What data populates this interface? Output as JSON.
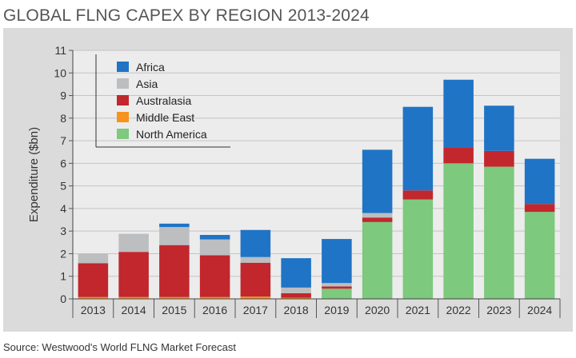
{
  "title": "GLOBAL FLNG CAPEX BY REGION 2013-2024",
  "source": "Source: Westwood's World FLNG Market Forecast",
  "chart_data": {
    "type": "bar",
    "stacked": true,
    "title": "GLOBAL FLNG CAPEX BY REGION 2013-2024",
    "xlabel": "",
    "ylabel": "Expenditure ($bn)",
    "ylim": [
      0,
      11
    ],
    "yticks": [
      0,
      1,
      2,
      3,
      4,
      5,
      6,
      7,
      8,
      9,
      10,
      11
    ],
    "grid": true,
    "legend_position": "top-left",
    "categories": [
      "2013",
      "2014",
      "2015",
      "2016",
      "2017",
      "2018",
      "2019",
      "2020",
      "2021",
      "2022",
      "2023",
      "2024"
    ],
    "series": [
      {
        "name": "North America",
        "color": "#7dc97d",
        "values": [
          0,
          0,
          0,
          0,
          0,
          0,
          0.45,
          3.4,
          4.4,
          6.0,
          5.85,
          3.85
        ]
      },
      {
        "name": "Middle East",
        "color": "#f7941d",
        "values": [
          0.08,
          0.08,
          0.08,
          0.08,
          0.1,
          0.05,
          0,
          0,
          0,
          0,
          0,
          0
        ]
      },
      {
        "name": "Australasia",
        "color": "#c1272d",
        "values": [
          1.5,
          2.0,
          2.3,
          1.85,
          1.5,
          0.2,
          0.1,
          0.2,
          0.4,
          0.7,
          0.7,
          0.35
        ]
      },
      {
        "name": "Asia",
        "color": "#bcbec0",
        "values": [
          0.42,
          0.8,
          0.8,
          0.7,
          0.25,
          0.25,
          0.15,
          0.2,
          0,
          0,
          0,
          0
        ]
      },
      {
        "name": "Africa",
        "color": "#1f74c6",
        "values": [
          0,
          0,
          0.15,
          0.2,
          1.2,
          1.3,
          1.95,
          2.8,
          3.7,
          3.0,
          2.0,
          2.0
        ]
      }
    ],
    "legend_order": [
      "Africa",
      "Asia",
      "Australasia",
      "Middle East",
      "North America"
    ]
  }
}
